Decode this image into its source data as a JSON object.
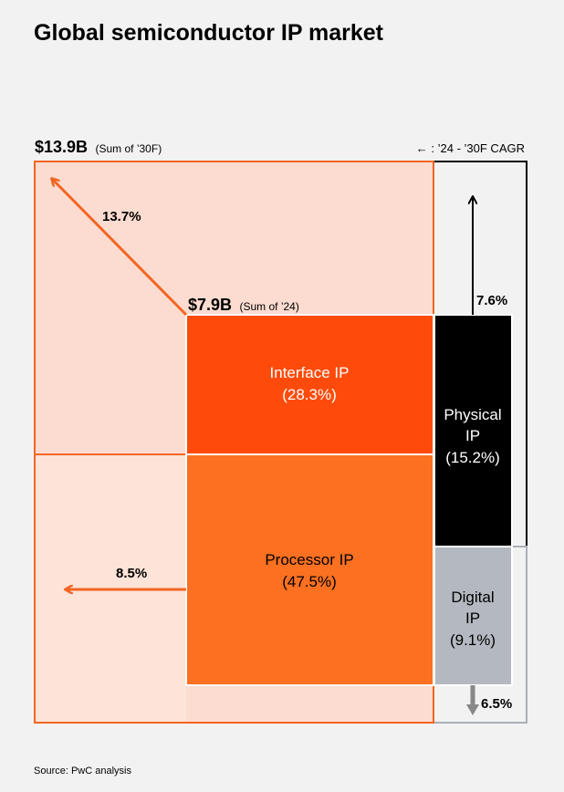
{
  "title": "Global semiconductor IP market",
  "source": "Source: PwC analysis",
  "legend": "← : ’24 - ’30F CAGR",
  "colors": {
    "outer_fill": "#fcdcd0",
    "outer_border": "#f26522",
    "interface": "#fe4b0b",
    "processor": "#fb7021",
    "physical": "#000000",
    "digital": "#b4b9c1",
    "arrow_orange": "#f26522"
  },
  "totals": {
    "y2030": {
      "value": "$13.9B",
      "note": "(Sum of ’30F)"
    },
    "y2024": {
      "value": "$7.9B",
      "note": "(Sum of ’24)"
    }
  },
  "chart_data": {
    "type": "treemap",
    "segments": [
      {
        "name": "Interface IP",
        "share": "(28.3%)",
        "share_value": 28.3,
        "cagr": "13.7%",
        "cagr_value": 13.7
      },
      {
        "name": "Processor IP",
        "share": "(47.5%)",
        "share_value": 47.5,
        "cagr": "8.5%",
        "cagr_value": 8.5
      },
      {
        "name": "Physical IP",
        "share": "(15.2%)",
        "share_value": 15.2,
        "cagr": "7.6%",
        "cagr_value": 7.6
      },
      {
        "name": "Digital IP",
        "share": "(9.1%)",
        "share_value": 9.1,
        "cagr": "6.5%",
        "cagr_value": 6.5
      }
    ]
  }
}
